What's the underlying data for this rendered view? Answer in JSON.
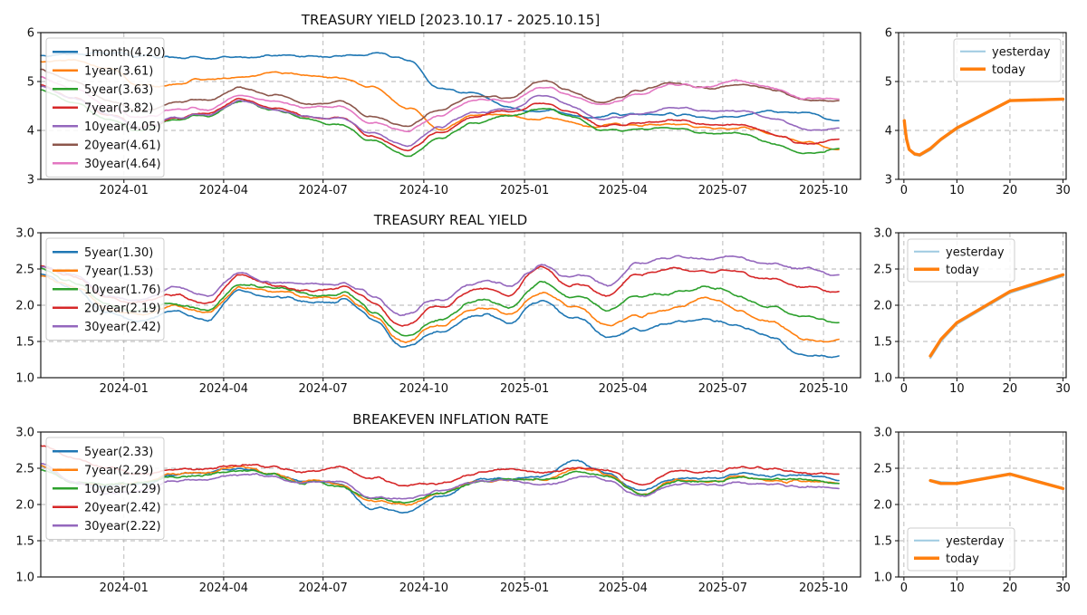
{
  "figure": {
    "background": "#ffffff"
  },
  "colors": {
    "blue": "#1f77b4",
    "orange": "#ff7f0e",
    "green": "#2ca02c",
    "red": "#d62728",
    "purple": "#9467bd",
    "brown": "#8c564b",
    "pink": "#e377c2",
    "yesterday": "#9ecae1",
    "today": "#ff7f0e",
    "grid": "#b3b3b3",
    "frame": "#1a1a1a",
    "text": "#111111"
  },
  "chart_data": [
    {
      "id": "treasury-yield-main",
      "type": "line",
      "panel": "main",
      "row": 0,
      "title": "TREASURY YIELD [2023.10.17 - 2025.10.15]",
      "date_range": [
        "2023.10.17",
        "2025.10.15"
      ],
      "x_months_span": 24,
      "xticks": {
        "labels": [
          "2024-01",
          "2024-04",
          "2024-07",
          "2024-10",
          "2025-01",
          "2025-04",
          "2025-07",
          "2025-10"
        ],
        "months": [
          2.5,
          5.5,
          8.49,
          11.52,
          14.55,
          17.51,
          20.51,
          23.54
        ]
      },
      "ylim": [
        3,
        6
      ],
      "yticks": {
        "labels": [
          "3",
          "4",
          "5",
          "6"
        ],
        "values": [
          3,
          4,
          5,
          6
        ]
      },
      "legend_loc": "upper-left",
      "grid": true,
      "series": [
        {
          "name": "1month(4.20)",
          "color": "#1f77b4",
          "last": 4.2,
          "monthly_values": [
            5.55,
            5.56,
            5.55,
            5.55,
            5.54,
            5.5,
            5.51,
            5.53,
            5.5,
            5.52,
            5.53,
            5.4,
            4.85,
            4.72,
            4.48,
            4.35,
            4.32,
            4.3,
            4.3,
            4.32,
            4.3,
            4.3,
            4.42,
            4.4,
            4.2
          ]
        },
        {
          "name": "1year(3.61)",
          "color": "#ff7f0e",
          "last": 3.61,
          "monthly_values": [
            5.45,
            5.42,
            5.25,
            4.97,
            4.95,
            5.03,
            5.12,
            5.22,
            5.12,
            5.1,
            4.88,
            4.45,
            4.0,
            4.27,
            4.3,
            4.22,
            4.15,
            4.12,
            4.08,
            4.1,
            4.08,
            4.05,
            3.93,
            3.8,
            3.61
          ]
        },
        {
          "name": "5year(3.63)",
          "color": "#2ca02c",
          "last": 3.63,
          "monthly_values": [
            4.88,
            4.55,
            4.2,
            4.0,
            4.25,
            4.3,
            4.65,
            4.45,
            4.25,
            4.15,
            3.75,
            3.45,
            3.85,
            4.1,
            4.3,
            4.4,
            4.3,
            4.0,
            4.0,
            4.05,
            4.0,
            3.95,
            3.75,
            3.6,
            3.63
          ]
        },
        {
          "name": "7year(3.82)",
          "color": "#d62728",
          "last": 3.82,
          "monthly_values": [
            4.95,
            4.65,
            4.3,
            4.1,
            4.3,
            4.35,
            4.7,
            4.5,
            4.3,
            4.25,
            3.85,
            3.55,
            3.95,
            4.2,
            4.4,
            4.5,
            4.4,
            4.1,
            4.15,
            4.2,
            4.15,
            4.1,
            3.95,
            3.8,
            3.82
          ]
        },
        {
          "name": "10year(4.05)",
          "color": "#9467bd",
          "last": 4.05,
          "monthly_values": [
            4.95,
            4.65,
            4.28,
            4.08,
            4.28,
            4.3,
            4.65,
            4.45,
            4.28,
            4.25,
            3.9,
            3.65,
            4.05,
            4.3,
            4.4,
            4.65,
            4.5,
            4.25,
            4.35,
            4.45,
            4.4,
            4.4,
            4.25,
            4.1,
            4.05
          ]
        },
        {
          "name": "20year(4.61)",
          "color": "#8c564b",
          "last": 4.61,
          "monthly_values": [
            5.3,
            5.0,
            4.6,
            4.45,
            4.6,
            4.6,
            4.9,
            4.75,
            4.55,
            4.6,
            4.25,
            4.05,
            4.4,
            4.65,
            4.65,
            4.95,
            4.8,
            4.6,
            4.8,
            4.95,
            4.9,
            4.95,
            4.85,
            4.7,
            4.61
          ]
        },
        {
          "name": "30year(4.64)",
          "color": "#e377c2",
          "last": 4.64,
          "monthly_values": [
            5.1,
            4.85,
            4.45,
            4.3,
            4.45,
            4.45,
            4.75,
            4.65,
            4.45,
            4.5,
            4.15,
            3.95,
            4.3,
            4.55,
            4.6,
            4.85,
            4.7,
            4.55,
            4.75,
            4.95,
            4.92,
            5.0,
            4.9,
            4.7,
            4.64
          ]
        }
      ]
    },
    {
      "id": "yield-curve-side",
      "type": "line",
      "panel": "side",
      "row": 0,
      "xlim": [
        -1,
        30.6
      ],
      "xticks": {
        "labels": [
          "0",
          "10",
          "20",
          "30"
        ],
        "values": [
          0,
          10,
          20,
          30
        ]
      },
      "ylim": [
        3,
        6
      ],
      "yticks": {
        "labels": [
          "3",
          "4",
          "5",
          "6"
        ],
        "values": [
          3,
          4,
          5,
          6
        ]
      },
      "legend_loc": "upper-right",
      "grid": true,
      "maturities_years": [
        0.083,
        0.25,
        0.5,
        1,
        2,
        3,
        5,
        7,
        10,
        20,
        30
      ],
      "series": [
        {
          "name": "yesterday",
          "color": "#9ecae1",
          "lw": 2,
          "values": [
            4.22,
            4.04,
            3.84,
            3.62,
            3.5,
            3.48,
            3.6,
            3.8,
            4.03,
            4.6,
            4.63
          ]
        },
        {
          "name": "today",
          "color": "#ff7f0e",
          "lw": 3.4,
          "values": [
            4.2,
            4.02,
            3.82,
            3.61,
            3.52,
            3.5,
            3.63,
            3.82,
            4.05,
            4.61,
            4.64
          ]
        }
      ]
    },
    {
      "id": "treasury-real-yield-main",
      "type": "line",
      "panel": "main",
      "row": 1,
      "title": "TREASURY REAL YIELD",
      "x_months_span": 24,
      "xticks": {
        "labels": [
          "2024-01",
          "2024-04",
          "2024-07",
          "2024-10",
          "2025-01",
          "2025-04",
          "2025-07",
          "2025-10"
        ],
        "months": [
          2.5,
          5.5,
          8.49,
          11.52,
          14.55,
          17.51,
          20.51,
          23.54
        ]
      },
      "ylim": [
        1,
        3
      ],
      "yticks": {
        "labels": [
          "1.0",
          "1.5",
          "2.0",
          "2.5",
          "3.0"
        ],
        "values": [
          1,
          1.5,
          2,
          2.5,
          3
        ]
      },
      "legend_loc": "upper-left",
      "grid": true,
      "series": [
        {
          "name": "5year(1.30)",
          "color": "#1f77b4",
          "last": 1.3,
          "monthly_values": [
            2.45,
            2.2,
            1.9,
            1.8,
            1.9,
            1.8,
            2.2,
            2.15,
            2.05,
            2.1,
            1.8,
            1.45,
            1.65,
            1.85,
            1.8,
            2.05,
            1.8,
            1.6,
            1.7,
            1.75,
            1.8,
            1.75,
            1.55,
            1.25,
            1.3
          ]
        },
        {
          "name": "7year(1.53)",
          "color": "#ff7f0e",
          "last": 1.53,
          "monthly_values": [
            2.45,
            2.25,
            1.95,
            1.9,
            1.95,
            1.88,
            2.25,
            2.2,
            2.1,
            2.15,
            1.85,
            1.52,
            1.75,
            1.95,
            1.9,
            2.18,
            1.95,
            1.78,
            1.9,
            1.95,
            2.05,
            1.95,
            1.75,
            1.5,
            1.53
          ]
        },
        {
          "name": "10year(1.76)",
          "color": "#2ca02c",
          "last": 1.76,
          "monthly_values": [
            2.5,
            2.3,
            2.0,
            1.95,
            2.0,
            1.93,
            2.3,
            2.25,
            2.15,
            2.2,
            1.92,
            1.58,
            1.85,
            2.05,
            2.0,
            2.33,
            2.1,
            1.95,
            2.15,
            2.15,
            2.22,
            2.15,
            1.95,
            1.8,
            1.76
          ]
        },
        {
          "name": "20year(2.19)",
          "color": "#d62728",
          "last": 2.19,
          "monthly_values": [
            2.55,
            2.35,
            2.1,
            2.05,
            2.1,
            2.03,
            2.4,
            2.3,
            2.2,
            2.25,
            2.0,
            1.75,
            2.0,
            2.2,
            2.15,
            2.5,
            2.25,
            2.15,
            2.45,
            2.5,
            2.45,
            2.5,
            2.35,
            2.2,
            2.19
          ]
        },
        {
          "name": "30year(2.42)",
          "color": "#9467bd",
          "last": 2.42,
          "monthly_values": [
            2.55,
            2.4,
            2.15,
            2.1,
            2.2,
            2.13,
            2.45,
            2.35,
            2.28,
            2.3,
            2.1,
            1.9,
            2.1,
            2.3,
            2.3,
            2.55,
            2.38,
            2.3,
            2.62,
            2.68,
            2.6,
            2.7,
            2.55,
            2.45,
            2.42
          ]
        }
      ]
    },
    {
      "id": "real-yield-curve-side",
      "type": "line",
      "panel": "side",
      "row": 1,
      "xlim": [
        -1,
        30.6
      ],
      "xticks": {
        "labels": [
          "0",
          "10",
          "20",
          "30"
        ],
        "values": [
          0,
          10,
          20,
          30
        ]
      },
      "ylim": [
        1,
        3
      ],
      "yticks": {
        "labels": [
          "1.0",
          "1.5",
          "2.0",
          "2.5",
          "3.0"
        ],
        "values": [
          1,
          1.5,
          2,
          2.5,
          3
        ]
      },
      "legend_loc": "upper-left",
      "grid": true,
      "maturities_years": [
        5,
        7,
        10,
        20,
        30
      ],
      "series": [
        {
          "name": "yesterday",
          "color": "#9ecae1",
          "lw": 2,
          "values": [
            1.27,
            1.5,
            1.74,
            2.17,
            2.4
          ]
        },
        {
          "name": "today",
          "color": "#ff7f0e",
          "lw": 3.4,
          "values": [
            1.3,
            1.53,
            1.76,
            2.19,
            2.42
          ]
        }
      ]
    },
    {
      "id": "breakeven-inflation-main",
      "type": "line",
      "panel": "main",
      "row": 2,
      "title": "BREAKEVEN INFLATION RATE",
      "x_months_span": 24,
      "xticks": {
        "labels": [
          "2024-01",
          "2024-04",
          "2024-07",
          "2024-10",
          "2025-01",
          "2025-04",
          "2025-07",
          "2025-10"
        ],
        "months": [
          2.5,
          5.5,
          8.49,
          11.52,
          14.55,
          17.51,
          20.51,
          23.54
        ]
      },
      "ylim": [
        1,
        3
      ],
      "yticks": {
        "labels": [
          "1.0",
          "1.5",
          "2.0",
          "2.5",
          "3.0"
        ],
        "values": [
          1,
          1.5,
          2,
          2.5,
          3
        ]
      },
      "legend_loc": "upper-left",
      "grid": true,
      "series": [
        {
          "name": "5year(2.33)",
          "color": "#1f77b4",
          "last": 2.33,
          "monthly_values": [
            2.5,
            2.3,
            2.22,
            2.3,
            2.4,
            2.45,
            2.5,
            2.4,
            2.32,
            2.28,
            1.95,
            1.9,
            2.12,
            2.32,
            2.33,
            2.4,
            2.58,
            2.42,
            2.2,
            2.35,
            2.35,
            2.42,
            2.35,
            2.42,
            2.33
          ]
        },
        {
          "name": "7year(2.29)",
          "color": "#ff7f0e",
          "last": 2.29,
          "monthly_values": [
            2.5,
            2.32,
            2.25,
            2.32,
            2.4,
            2.44,
            2.52,
            2.42,
            2.3,
            2.26,
            2.05,
            2.0,
            2.15,
            2.3,
            2.3,
            2.37,
            2.48,
            2.4,
            2.17,
            2.32,
            2.3,
            2.37,
            2.3,
            2.36,
            2.29
          ]
        },
        {
          "name": "10year(2.29)",
          "color": "#2ca02c",
          "last": 2.29,
          "monthly_values": [
            2.45,
            2.3,
            2.25,
            2.32,
            2.37,
            2.4,
            2.47,
            2.41,
            2.3,
            2.25,
            2.1,
            2.05,
            2.17,
            2.3,
            2.3,
            2.35,
            2.42,
            2.36,
            2.16,
            2.3,
            2.3,
            2.36,
            2.31,
            2.36,
            2.29
          ]
        },
        {
          "name": "20year(2.42)",
          "color": "#d62728",
          "last": 2.42,
          "monthly_values": [
            2.78,
            2.65,
            2.5,
            2.45,
            2.45,
            2.5,
            2.56,
            2.5,
            2.45,
            2.5,
            2.36,
            2.28,
            2.3,
            2.42,
            2.45,
            2.46,
            2.5,
            2.47,
            2.28,
            2.44,
            2.45,
            2.5,
            2.45,
            2.46,
            2.42
          ]
        },
        {
          "name": "30year(2.22)",
          "color": "#9467bd",
          "last": 2.22,
          "monthly_values": [
            2.52,
            2.3,
            2.13,
            2.2,
            2.3,
            2.34,
            2.42,
            2.36,
            2.3,
            2.3,
            2.1,
            2.1,
            2.2,
            2.3,
            2.3,
            2.3,
            2.36,
            2.32,
            2.12,
            2.26,
            2.26,
            2.3,
            2.26,
            2.26,
            2.22
          ]
        }
      ]
    },
    {
      "id": "breakeven-curve-side",
      "type": "line",
      "panel": "side",
      "row": 2,
      "xlim": [
        -1,
        30.6
      ],
      "xticks": {
        "labels": [
          "0",
          "10",
          "20",
          "30"
        ],
        "values": [
          0,
          10,
          20,
          30
        ]
      },
      "ylim": [
        1,
        3
      ],
      "yticks": {
        "labels": [
          "1.0",
          "1.5",
          "2.0",
          "2.5",
          "3.0"
        ],
        "values": [
          1,
          1.5,
          2,
          2.5,
          3
        ]
      },
      "legend_loc": "lower-left",
      "grid": true,
      "maturities_years": [
        5,
        7,
        10,
        20,
        30
      ],
      "series": [
        {
          "name": "yesterday",
          "color": "#9ecae1",
          "lw": 2,
          "values": [
            2.34,
            2.31,
            2.3,
            2.43,
            2.23
          ]
        },
        {
          "name": "today",
          "color": "#ff7f0e",
          "lw": 3.4,
          "values": [
            2.33,
            2.29,
            2.29,
            2.42,
            2.22
          ]
        }
      ]
    }
  ]
}
